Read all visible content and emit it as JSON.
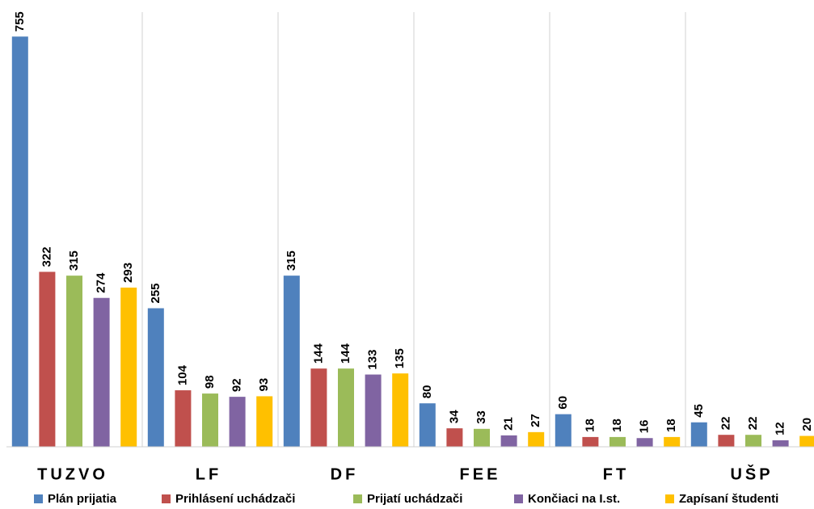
{
  "chart_data": {
    "type": "bar",
    "categories": [
      "TUZVO",
      "LF",
      "DF",
      "FEE",
      "FT",
      "UŠP"
    ],
    "series": [
      {
        "name": "Plán prijatia",
        "color": "#4f81bd",
        "values": [
          755,
          255,
          315,
          80,
          60,
          45
        ]
      },
      {
        "name": "Prihlásení uchádzači",
        "color": "#c0504d",
        "values": [
          322,
          104,
          144,
          34,
          18,
          22
        ]
      },
      {
        "name": "Prijatí uchádzači",
        "color": "#9bbb59",
        "values": [
          315,
          98,
          144,
          33,
          18,
          22
        ]
      },
      {
        "name": "Končiaci na I.st.",
        "color": "#8064a2",
        "values": [
          274,
          92,
          133,
          21,
          16,
          12
        ]
      },
      {
        "name": "Zapísaní študenti",
        "color": "#ffc000",
        "values": [
          293,
          93,
          135,
          27,
          18,
          20
        ]
      }
    ],
    "ylim": [
      0,
      800
    ],
    "legend": "bottom"
  }
}
